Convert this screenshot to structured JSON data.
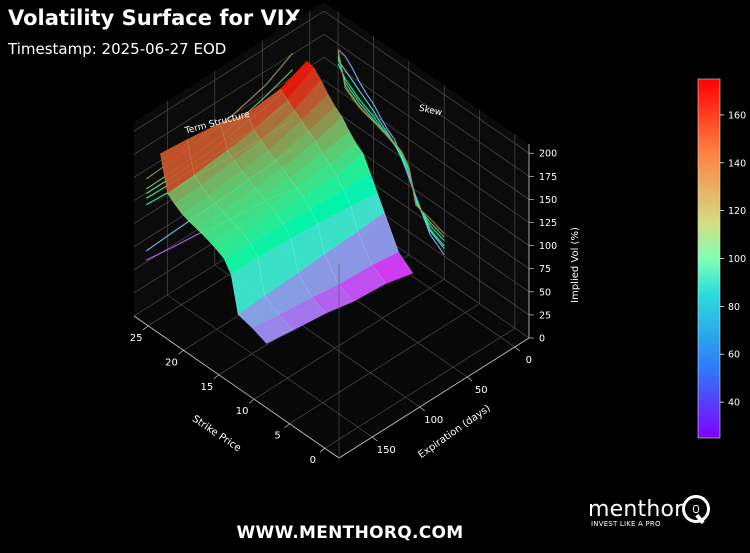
{
  "header": {
    "title": "Volatility Surface for VIX",
    "subtitle": "Timestamp: 2025-06-27 EOD"
  },
  "footer": {
    "url": "WWW.MENTHORQ.COM"
  },
  "brand": {
    "name": "menthor",
    "tagline": "INVEST LIKE A PRO",
    "logo_icon": "q-magnifier-icon"
  },
  "colors": {
    "background": "#000000",
    "grid": "#555555",
    "text": "#ffffff",
    "colormap": "rainbow"
  },
  "chart_data": {
    "type": "surface3d",
    "title": "Volatility Surface for VIX",
    "xlabel": "Strike Price",
    "ylabel": "Expiration (days)",
    "zlabel": "Implied Vol (%)",
    "x_ticks": [
      0,
      5,
      10,
      15,
      20,
      25
    ],
    "y_ticks": [
      0,
      50,
      100,
      150
    ],
    "z_ticks": [
      0,
      25,
      50,
      75,
      100,
      125,
      150,
      175,
      200
    ],
    "xlim": [
      -2,
      27
    ],
    "ylim": [
      -15,
      185
    ],
    "zlim": [
      0,
      210
    ],
    "colorbar": {
      "min": 25,
      "max": 175,
      "ticks": [
        40,
        60,
        80,
        100,
        120,
        140,
        160
      ]
    },
    "panel_labels": [
      "Term Structure",
      "Skew"
    ],
    "strikes": [
      10,
      12,
      14,
      15,
      16,
      17,
      18,
      19,
      20,
      21,
      22,
      23,
      24,
      25
    ],
    "expirations": [
      18,
      46,
      81,
      109,
      144,
      172
    ],
    "implied_vol": [
      [
        28,
        40,
        72,
        88,
        104,
        120,
        126,
        134,
        144,
        150,
        158,
        168,
        176,
        178
      ],
      [
        35,
        44,
        70,
        92,
        104,
        115,
        122,
        128,
        136,
        142,
        148,
        154,
        160,
        166
      ],
      [
        38,
        46,
        68,
        96,
        106,
        114,
        120,
        124,
        130,
        134,
        138,
        144,
        150,
        162
      ],
      [
        44,
        50,
        66,
        98,
        108,
        114,
        118,
        122,
        126,
        130,
        134,
        140,
        146,
        170
      ],
      [
        48,
        54,
        64,
        100,
        110,
        115,
        118,
        121,
        124,
        127,
        130,
        136,
        142,
        175
      ],
      [
        52,
        58,
        62,
        100,
        112,
        116,
        119,
        122,
        124,
        126,
        129,
        134,
        140,
        178
      ]
    ]
  }
}
